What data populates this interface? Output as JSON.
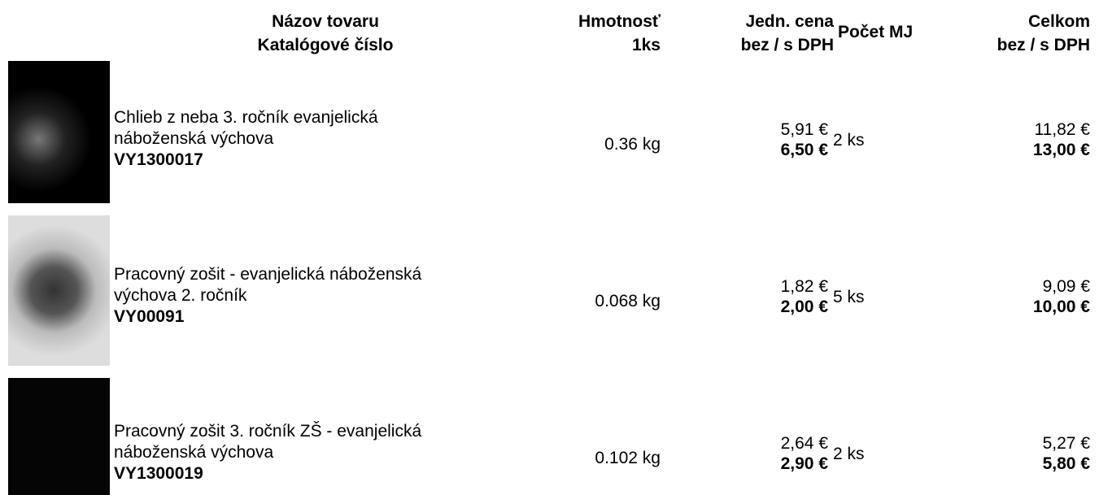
{
  "header": {
    "name": [
      "Názov tovaru",
      "Katalógové číslo"
    ],
    "weight": [
      "Hmotnosť",
      "1ks"
    ],
    "unit_price": [
      "Jedn. cena",
      "bez / s DPH"
    ],
    "quantity": "Počet MJ",
    "total": [
      "Celkom",
      "bez / s DPH"
    ]
  },
  "rows": [
    {
      "name": [
        "Chlieb z neba 3. ročník evanjelická",
        "náboženská výchova"
      ],
      "code": "VY1300017",
      "weight": "0.36 kg",
      "price_net": "5,91 €",
      "price_gross": "6,50 €",
      "quantity": "2 ks",
      "total_net": "11,82 €",
      "total_gross": "13,00 €"
    },
    {
      "name": [
        "Pracovný zošit - evanjelická náboženská",
        "výchova 2. ročník"
      ],
      "code": "VY00091",
      "weight": "0.068 kg",
      "price_net": "1,82 €",
      "price_gross": "2,00 €",
      "quantity": "5 ks",
      "total_net": "9,09 €",
      "total_gross": "10,00 €"
    },
    {
      "name": [
        "Pracovný zošit 3. ročník ZŠ - evanjelická",
        "náboženská výchova"
      ],
      "code": "VY1300019",
      "weight": "0.102 kg",
      "price_net": "2,64 €",
      "price_gross": "2,90 €",
      "quantity": "2 ks",
      "total_net": "5,27 €",
      "total_gross": "5,80 €"
    }
  ]
}
